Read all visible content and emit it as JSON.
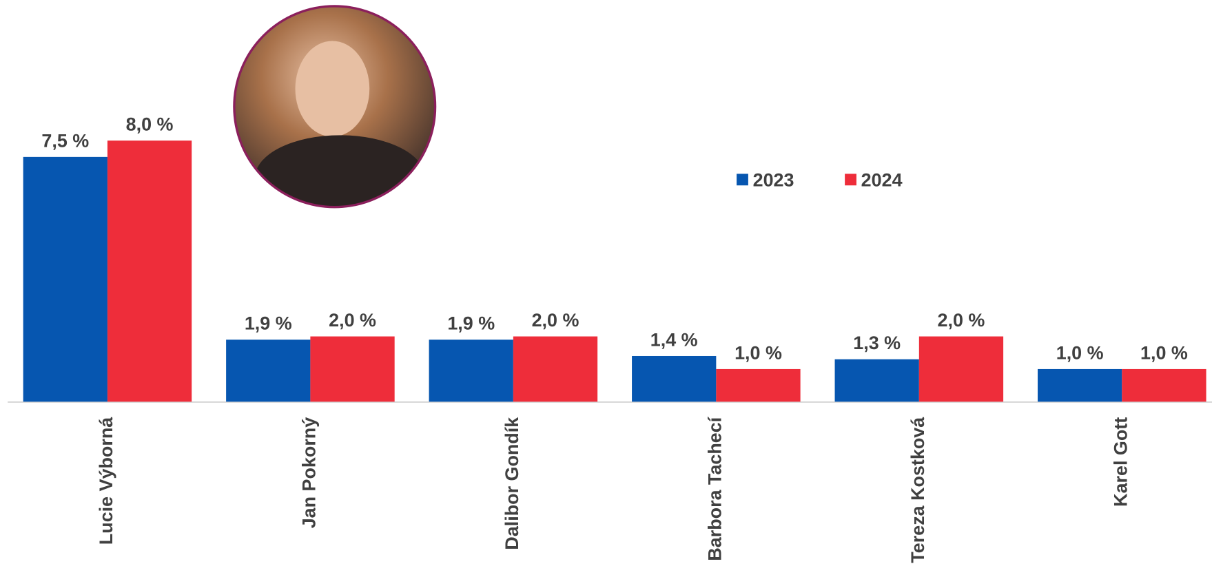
{
  "chart_data": {
    "type": "bar",
    "categories": [
      "Lucie Výborná",
      "Jan Pokorný",
      "Dalibor Gondík",
      "Barbora Tachecí",
      "Tereza Kostková",
      "Karel Gott"
    ],
    "series": [
      {
        "name": "2023",
        "color": "#0656b0",
        "values": [
          7.5,
          1.9,
          1.9,
          1.4,
          1.3,
          1.0
        ],
        "value_labels": [
          "7,5 %",
          "1,9 %",
          "1,9 %",
          "1,4 %",
          "1,3 %",
          "1,0 %"
        ]
      },
      {
        "name": "2024",
        "color": "#ee2d3a",
        "values": [
          8.0,
          2.0,
          2.0,
          1.0,
          2.0,
          1.0
        ],
        "value_labels": [
          "8,0 %",
          "2,0 %",
          "2,0 %",
          "1,0 %",
          "2,0 %",
          "1,0 %"
        ]
      }
    ],
    "legend": "top-right"
  }
}
